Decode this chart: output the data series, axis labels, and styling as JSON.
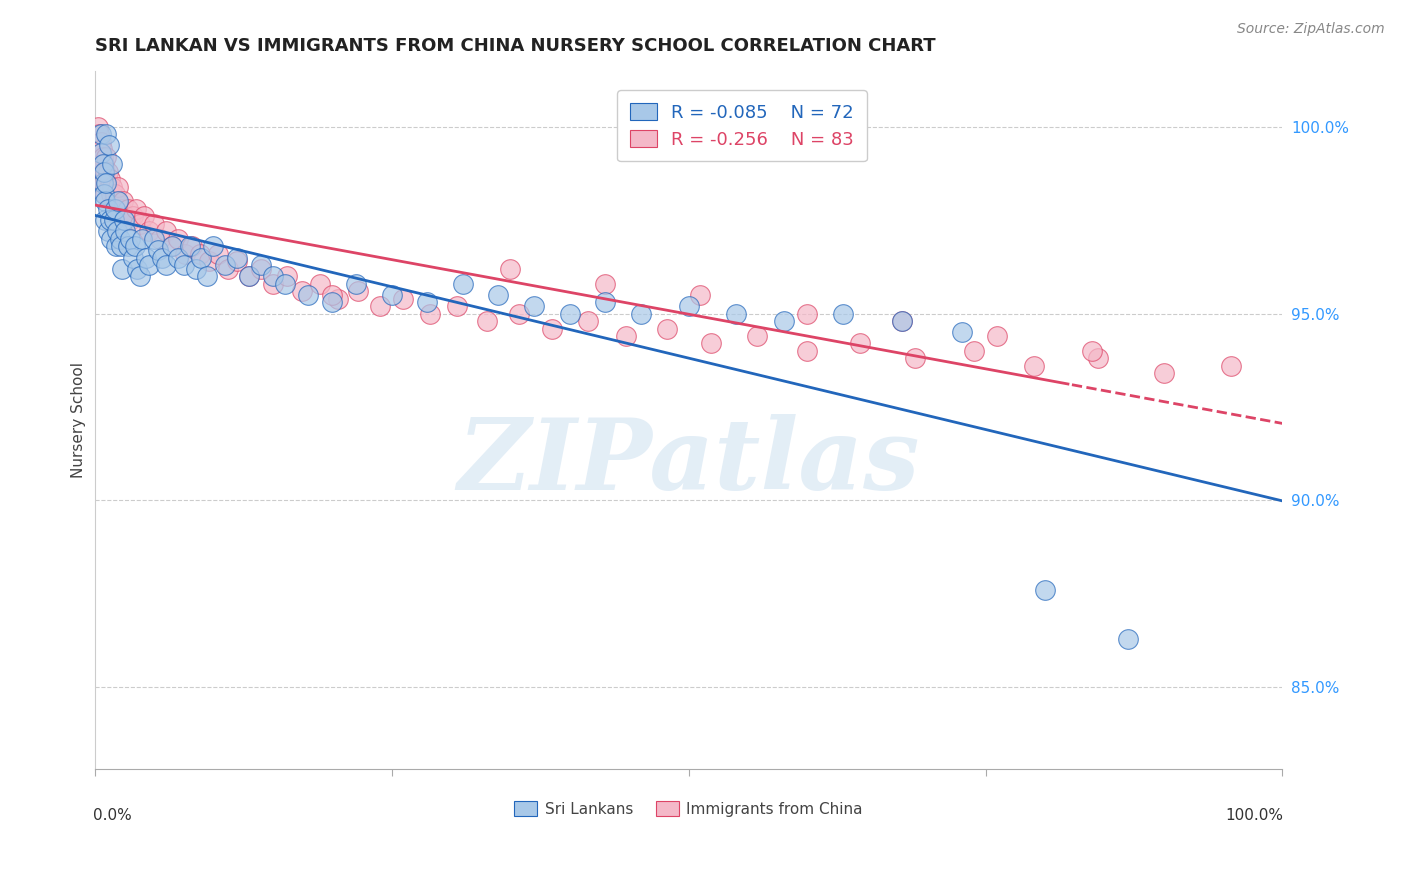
{
  "title": "SRI LANKAN VS IMMIGRANTS FROM CHINA NURSERY SCHOOL CORRELATION CHART",
  "source": "Source: ZipAtlas.com",
  "ylabel": "Nursery School",
  "legend_blue": {
    "R": -0.085,
    "N": 72,
    "label": "Sri Lankans"
  },
  "legend_pink": {
    "R": -0.256,
    "N": 83,
    "label": "Immigrants from China"
  },
  "blue_color": "#a8c8e8",
  "pink_color": "#f4b8c8",
  "trendline_blue": "#2266bb",
  "trendline_pink": "#dd4466",
  "ytick_labels": [
    "100.0%",
    "95.0%",
    "90.0%",
    "85.0%"
  ],
  "ytick_values": [
    1.0,
    0.95,
    0.9,
    0.85
  ],
  "xlim": [
    0.0,
    1.0
  ],
  "ylim": [
    0.828,
    1.015
  ],
  "blue_x": [
    0.005,
    0.005,
    0.007,
    0.007,
    0.008,
    0.008,
    0.009,
    0.009,
    0.01,
    0.01,
    0.011,
    0.011,
    0.012,
    0.013,
    0.014,
    0.015,
    0.016,
    0.017,
    0.018,
    0.019,
    0.02,
    0.021,
    0.022,
    0.023,
    0.025,
    0.026,
    0.028,
    0.03,
    0.032,
    0.034,
    0.036,
    0.038,
    0.04,
    0.043,
    0.046,
    0.05,
    0.053,
    0.057,
    0.06,
    0.065,
    0.07,
    0.075,
    0.08,
    0.085,
    0.09,
    0.095,
    0.1,
    0.11,
    0.12,
    0.13,
    0.14,
    0.15,
    0.16,
    0.18,
    0.2,
    0.22,
    0.25,
    0.28,
    0.31,
    0.34,
    0.37,
    0.4,
    0.43,
    0.46,
    0.5,
    0.54,
    0.58,
    0.63,
    0.68,
    0.73,
    0.8,
    0.87
  ],
  "blue_y": [
    0.998,
    0.993,
    0.99,
    0.985,
    0.988,
    0.982,
    0.98,
    0.975,
    0.998,
    0.985,
    0.978,
    0.972,
    0.995,
    0.975,
    0.97,
    0.99,
    0.975,
    0.978,
    0.968,
    0.972,
    0.98,
    0.97,
    0.968,
    0.962,
    0.975,
    0.972,
    0.968,
    0.97,
    0.965,
    0.968,
    0.962,
    0.96,
    0.97,
    0.965,
    0.963,
    0.97,
    0.967,
    0.965,
    0.963,
    0.968,
    0.965,
    0.963,
    0.968,
    0.962,
    0.965,
    0.96,
    0.968,
    0.963,
    0.965,
    0.96,
    0.963,
    0.96,
    0.958,
    0.955,
    0.953,
    0.958,
    0.955,
    0.953,
    0.958,
    0.955,
    0.952,
    0.95,
    0.953,
    0.95,
    0.952,
    0.95,
    0.948,
    0.95,
    0.948,
    0.945,
    0.876,
    0.863
  ],
  "pink_x": [
    0.003,
    0.004,
    0.005,
    0.005,
    0.006,
    0.006,
    0.007,
    0.007,
    0.008,
    0.008,
    0.009,
    0.009,
    0.01,
    0.01,
    0.011,
    0.012,
    0.013,
    0.014,
    0.015,
    0.016,
    0.017,
    0.018,
    0.019,
    0.02,
    0.021,
    0.022,
    0.024,
    0.026,
    0.028,
    0.03,
    0.032,
    0.035,
    0.038,
    0.042,
    0.046,
    0.05,
    0.055,
    0.06,
    0.065,
    0.07,
    0.076,
    0.082,
    0.089,
    0.096,
    0.104,
    0.112,
    0.12,
    0.13,
    0.14,
    0.15,
    0.162,
    0.175,
    0.19,
    0.205,
    0.222,
    0.24,
    0.26,
    0.282,
    0.305,
    0.33,
    0.357,
    0.385,
    0.415,
    0.447,
    0.482,
    0.519,
    0.558,
    0.6,
    0.644,
    0.691,
    0.74,
    0.791,
    0.845,
    0.9,
    0.957,
    0.2,
    0.35,
    0.43,
    0.51,
    0.6,
    0.68,
    0.76,
    0.84
  ],
  "pink_y": [
    1.0,
    0.998,
    0.996,
    0.993,
    0.994,
    0.99,
    0.992,
    0.988,
    0.99,
    0.985,
    0.988,
    0.982,
    0.992,
    0.985,
    0.988,
    0.984,
    0.986,
    0.982,
    0.984,
    0.98,
    0.982,
    0.978,
    0.98,
    0.984,
    0.976,
    0.978,
    0.98,
    0.976,
    0.978,
    0.975,
    0.976,
    0.978,
    0.974,
    0.976,
    0.972,
    0.974,
    0.97,
    0.972,
    0.968,
    0.97,
    0.966,
    0.968,
    0.966,
    0.964,
    0.966,
    0.962,
    0.964,
    0.96,
    0.962,
    0.958,
    0.96,
    0.956,
    0.958,
    0.954,
    0.956,
    0.952,
    0.954,
    0.95,
    0.952,
    0.948,
    0.95,
    0.946,
    0.948,
    0.944,
    0.946,
    0.942,
    0.944,
    0.94,
    0.942,
    0.938,
    0.94,
    0.936,
    0.938,
    0.934,
    0.936,
    0.955,
    0.962,
    0.958,
    0.955,
    0.95,
    0.948,
    0.944,
    0.94
  ]
}
